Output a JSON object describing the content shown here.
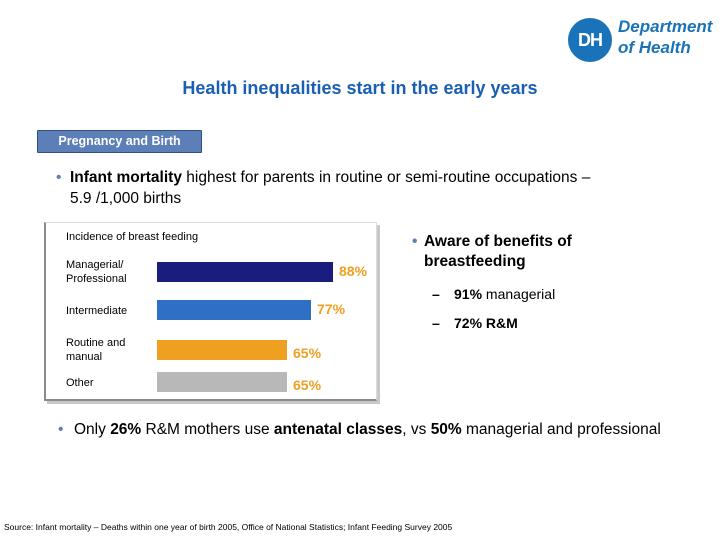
{
  "logo": {
    "mark": "DH",
    "line1": "Department",
    "line2": "of Health"
  },
  "title": "Health inequalities start in the early years",
  "section_tag": "Pregnancy and Birth",
  "bullet1": {
    "bold": "Infant mortality",
    "rest": " highest for parents in routine or semi-routine occupations – 5.9 /1,000 births"
  },
  "bullet2": {
    "text": "Aware of benefits of breastfeeding",
    "subs": [
      {
        "value": "91%",
        "label": " managerial"
      },
      {
        "value": "72% R&M",
        "label": ""
      }
    ]
  },
  "bullet3": {
    "p1": "Only ",
    "b1": "26%",
    "p2": " R&M mothers use ",
    "b2": "antenatal classes",
    "p3": ", vs ",
    "b3": "50%",
    "p4": " managerial and professional"
  },
  "source": "Source: Infant mortality – Deaths within one year of birth 2005, Office of National Statistics; Infant Feeding Survey 2005",
  "colors": {
    "title": "#1a5fb4",
    "managerial": "#1b1d7e",
    "intermediate": "#2f6fc6",
    "routine": "#f0a020",
    "other": "#b8b8b8"
  },
  "chart_data": {
    "type": "bar",
    "orientation": "horizontal",
    "title": "Incidence of breast feeding",
    "categories": [
      "Managerial/ Professional",
      "Intermediate",
      "Routine and manual",
      "Other"
    ],
    "values": [
      88,
      77,
      65,
      65
    ],
    "labels": [
      "88%",
      "77%",
      "65%",
      "65%"
    ],
    "colors": [
      "#1b1d7e",
      "#2f6fc6",
      "#f0a020",
      "#b8b8b8"
    ],
    "xlim": [
      0,
      100
    ],
    "grid": false,
    "legend": "none"
  }
}
